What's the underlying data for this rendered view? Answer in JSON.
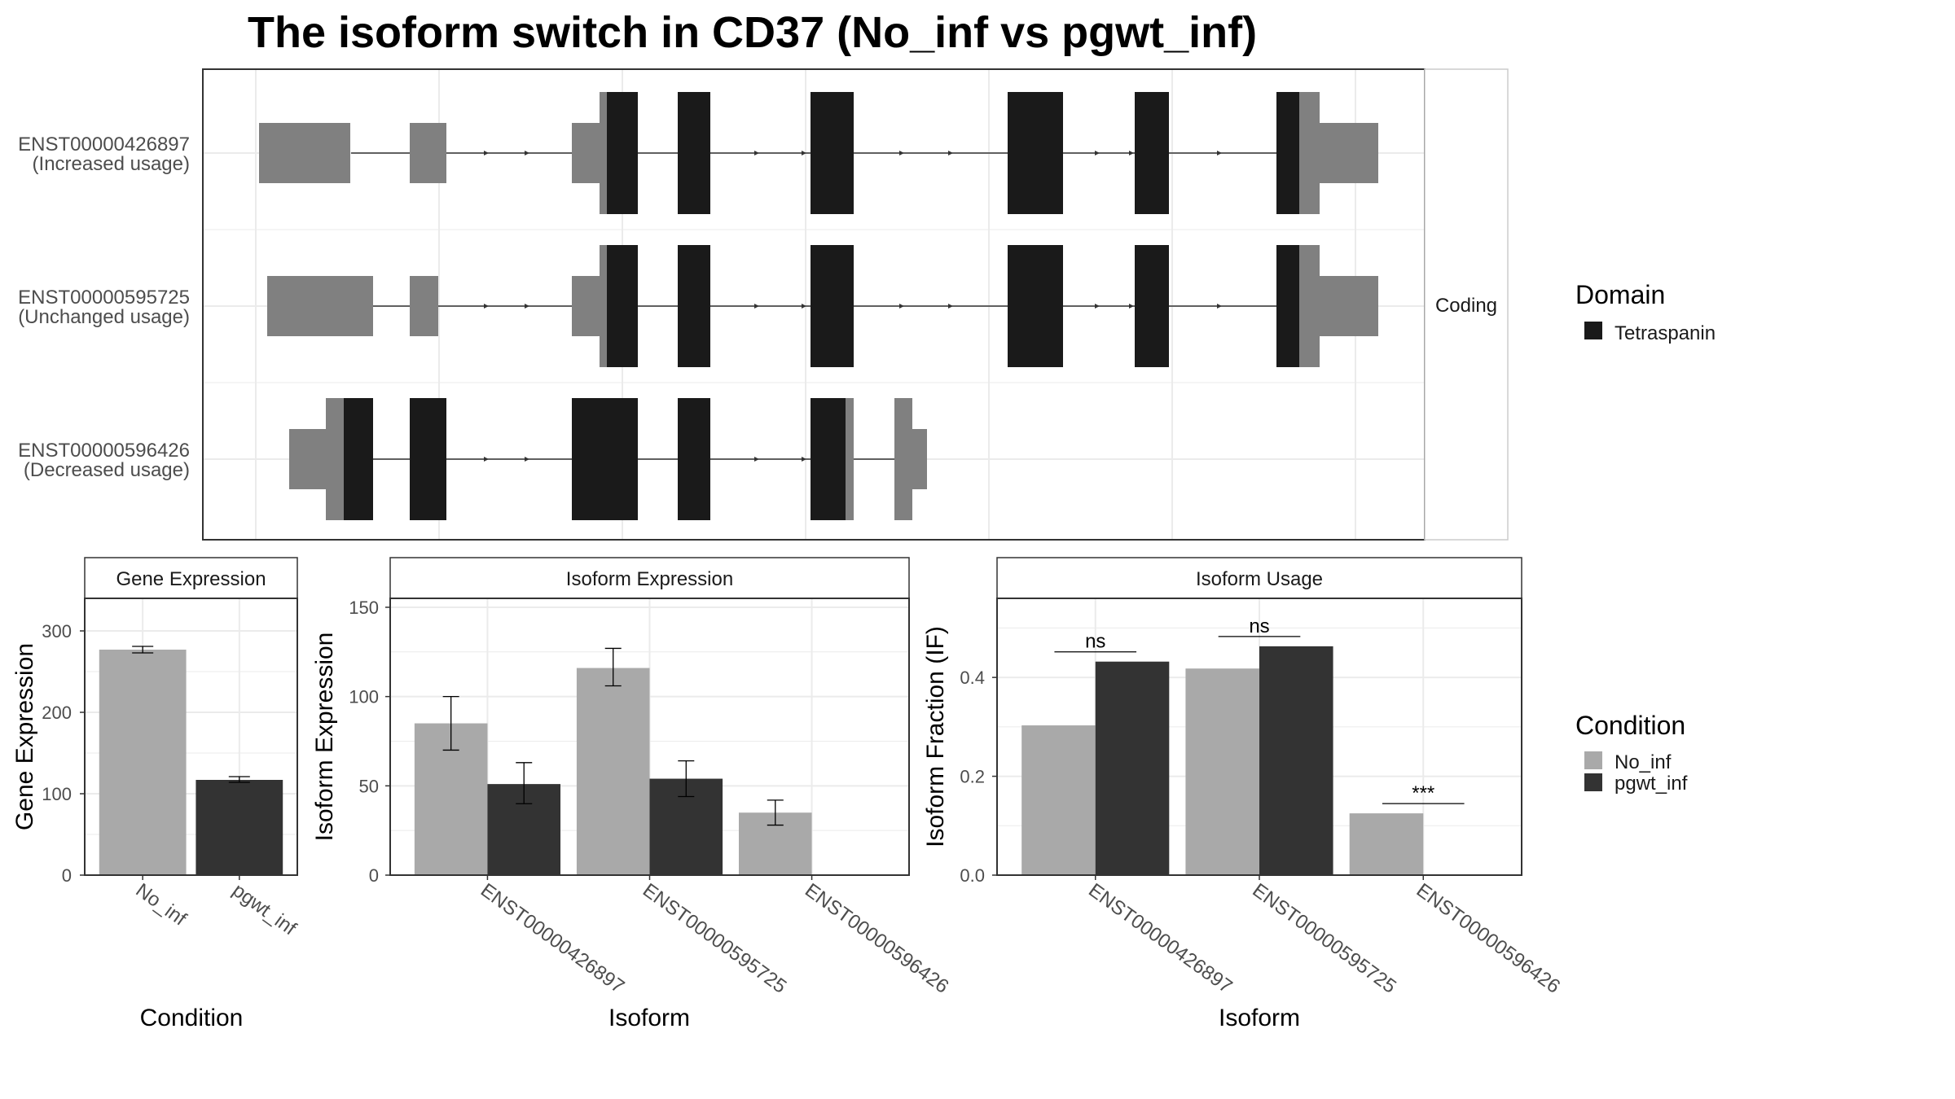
{
  "title": "The isoform switch in CD37 (No_inf vs pgwt_inf)",
  "colors": {
    "no_inf": "#a9a9a9",
    "pgwt_inf": "#333333",
    "domain": "#1a1a1a",
    "utr": "#808080",
    "grid": "#ebebeb",
    "panel_border": "#333333"
  },
  "structure": {
    "facet_label": "Coding",
    "isoforms": [
      {
        "id": "ENST00000426897",
        "usage": "(Increased usage)"
      },
      {
        "id": "ENST00000595725",
        "usage": "(Unchanged usage)"
      },
      {
        "id": "ENST00000596426",
        "usage": "(Decreased usage)"
      }
    ]
  },
  "legends": {
    "domain": {
      "title": "Domain",
      "items": [
        {
          "label": "Tetraspanin",
          "color": "#1a1a1a"
        }
      ]
    },
    "condition": {
      "title": "Condition",
      "items": [
        {
          "label": "No_inf",
          "color": "#a9a9a9"
        },
        {
          "label": "pgwt_inf",
          "color": "#333333"
        }
      ]
    }
  },
  "chart_data": [
    {
      "type": "bar",
      "strip": "Gene Expression",
      "xlabel": "Condition",
      "ylabel": "Gene Expression",
      "categories": [
        "No_inf",
        "pgwt_inf"
      ],
      "values": [
        277,
        117
      ],
      "errors_low": [
        273,
        114
      ],
      "errors_high": [
        281,
        121
      ],
      "ylim": [
        0,
        340
      ],
      "yticks": [
        0,
        100,
        200,
        300
      ],
      "grid": true
    },
    {
      "type": "bar",
      "strip": "Isoform Expression",
      "xlabel": "Isoform",
      "ylabel": "Isoform Expression",
      "categories": [
        "ENST00000426897",
        "ENST00000595725",
        "ENST00000596426"
      ],
      "series": [
        {
          "name": "No_inf",
          "values": [
            85,
            116,
            35
          ],
          "errors_low": [
            70,
            106,
            28
          ],
          "errors_high": [
            100,
            127,
            42
          ]
        },
        {
          "name": "pgwt_inf",
          "values": [
            51,
            54,
            0
          ],
          "errors_low": [
            40,
            44,
            0
          ],
          "errors_high": [
            63,
            64,
            0
          ]
        }
      ],
      "ylim": [
        0,
        155
      ],
      "yticks": [
        0,
        50,
        100,
        150
      ],
      "grid": true
    },
    {
      "type": "bar",
      "strip": "Isoform Usage",
      "xlabel": "Isoform",
      "ylabel": "Isoform Fraction (IF)",
      "categories": [
        "ENST00000426897",
        "ENST00000595725",
        "ENST00000596426"
      ],
      "series": [
        {
          "name": "No_inf",
          "values": [
            0.303,
            0.418,
            0.125
          ]
        },
        {
          "name": "pgwt_inf",
          "values": [
            0.432,
            0.463,
            0.0
          ]
        }
      ],
      "significance": [
        "ns",
        "ns",
        "***"
      ],
      "ylim": [
        0,
        0.56
      ],
      "yticks": [
        0.0,
        0.2,
        0.4
      ],
      "ytick_labels": [
        "0.0",
        "0.2",
        "0.4"
      ],
      "grid": true
    }
  ]
}
